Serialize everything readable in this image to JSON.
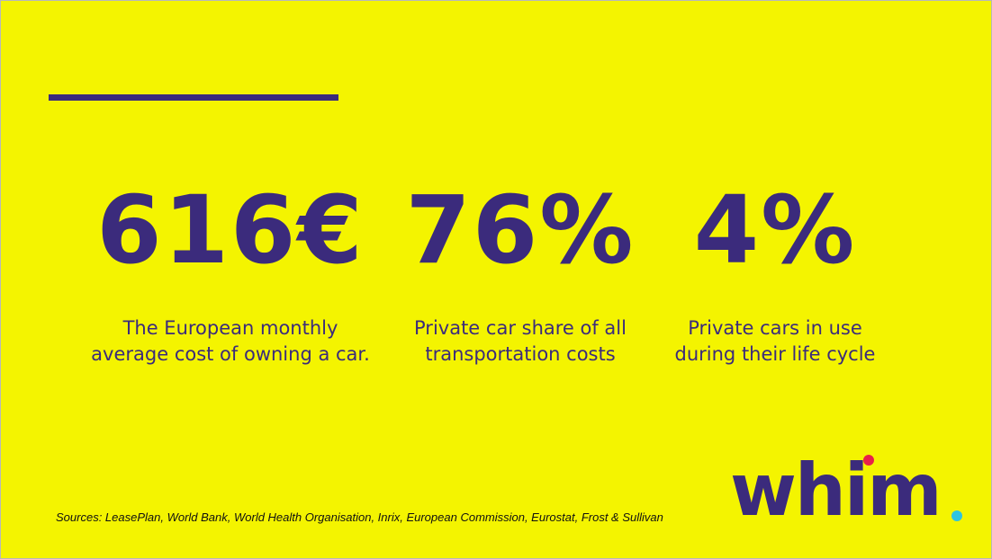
{
  "stats": [
    {
      "value": "616€",
      "lines": [
        "The European monthly",
        "average cost of owning a car."
      ]
    },
    {
      "value": "76%",
      "lines": [
        "Private car share of all",
        "transportation costs"
      ]
    },
    {
      "value": "4%",
      "lines": [
        "Private cars in use",
        "during their life cycle"
      ]
    }
  ],
  "sources": "Sources: LeasePlan, World Bank, World Health Organisation, Inrix, European Commission, Eurostat, Frost & Sullivan",
  "logo": "whim"
}
